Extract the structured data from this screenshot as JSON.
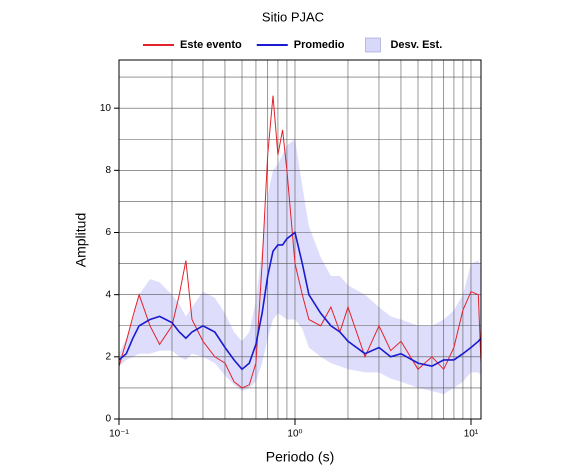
{
  "chart_data": {
    "type": "line",
    "title": "Sitio PJAC",
    "xlabel": "Periodo (s)",
    "ylabel": "Amplitud",
    "xscale": "log",
    "grid": true,
    "legend": "top",
    "xlim": [
      0.1,
      11.4
    ],
    "ylim": [
      0,
      11.55
    ],
    "xticks": [
      {
        "value": 0.1,
        "label": "10⁻¹"
      },
      {
        "value": 1,
        "label": "10⁰"
      },
      {
        "value": 10,
        "label": "10¹"
      }
    ],
    "yticks": [
      0,
      2,
      4,
      6,
      8,
      10
    ],
    "x": [
      0.1,
      0.11,
      0.12,
      0.13,
      0.15,
      0.17,
      0.2,
      0.22,
      0.24,
      0.26,
      0.3,
      0.35,
      0.4,
      0.45,
      0.5,
      0.55,
      0.6,
      0.65,
      0.7,
      0.75,
      0.8,
      0.85,
      0.9,
      1.0,
      1.1,
      1.2,
      1.4,
      1.6,
      1.8,
      2,
      2.5,
      3,
      3.5,
      4,
      5,
      6,
      7,
      8,
      9,
      10,
      11,
      11.4
    ],
    "band": {
      "name": "Desv. Est.",
      "color": "#d8d8fb",
      "upper": [
        2.1,
        2.6,
        3.2,
        4.0,
        4.5,
        4.4,
        4.0,
        3.7,
        3.3,
        3.6,
        4.1,
        3.9,
        3.4,
        2.8,
        2.5,
        2.8,
        3.8,
        5.5,
        7.2,
        8.0,
        8.2,
        8.5,
        8.8,
        9.0,
        7.5,
        6.2,
        5.2,
        4.6,
        4.6,
        4.3,
        4.0,
        3.6,
        3.3,
        3.2,
        3.0,
        3.0,
        3.2,
        3.5,
        4.0,
        5.0,
        5.1,
        4.9
      ],
      "lower": [
        1.7,
        1.9,
        2.0,
        2.1,
        2.1,
        2.2,
        2.2,
        2.0,
        1.9,
        2.1,
        2.0,
        1.8,
        1.4,
        1.1,
        0.9,
        1.0,
        1.2,
        1.8,
        2.6,
        3.2,
        3.4,
        3.3,
        3.2,
        3.2,
        2.9,
        2.3,
        2.0,
        1.8,
        1.7,
        1.6,
        1.5,
        1.5,
        1.3,
        1.2,
        1.0,
        0.9,
        0.8,
        1.0,
        1.2,
        1.5,
        1.5,
        1.4
      ]
    },
    "series": [
      {
        "name": "Este evento",
        "color": "#e3222b",
        "values": [
          1.7,
          2.5,
          3.3,
          4.0,
          3.0,
          2.4,
          3.0,
          4.0,
          5.1,
          3.2,
          2.5,
          2.0,
          1.8,
          1.2,
          1.0,
          1.1,
          1.8,
          5.0,
          8.5,
          10.4,
          8.5,
          9.3,
          8.0,
          5.0,
          4.0,
          3.2,
          3.0,
          3.6,
          2.8,
          3.6,
          2.0,
          3.0,
          2.2,
          2.5,
          1.6,
          2.0,
          1.6,
          2.3,
          3.5,
          4.1,
          4.0,
          1.8
        ]
      },
      {
        "name": "Promedio",
        "color": "#1a1ad0",
        "values": [
          1.9,
          2.1,
          2.6,
          3.0,
          3.2,
          3.3,
          3.1,
          2.8,
          2.6,
          2.8,
          3.0,
          2.8,
          2.3,
          1.9,
          1.6,
          1.8,
          2.4,
          3.4,
          4.6,
          5.4,
          5.6,
          5.6,
          5.8,
          6.0,
          5.0,
          4.0,
          3.4,
          3.0,
          2.8,
          2.5,
          2.1,
          2.3,
          2.0,
          2.1,
          1.8,
          1.7,
          1.9,
          1.9,
          2.1,
          2.3,
          2.5,
          2.6
        ]
      }
    ]
  }
}
